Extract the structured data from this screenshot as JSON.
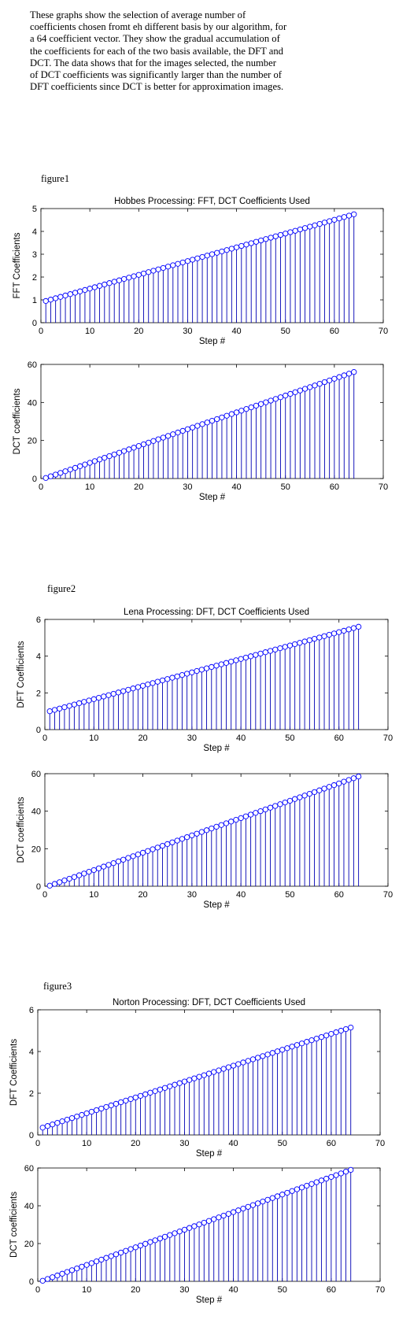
{
  "intro": {
    "lines": [
      "These graphs show the selection of average number of",
      "coefficients chosen fromt eh different basis by our algorithm, for",
      "a 64 coefficient vector. They show the gradual accumulation of",
      "the coefficients for each of the two basis available, the DFT and",
      "DCT. The data shows that for the images selected, the number",
      "of DCT coefficients was significantly larger than the number of",
      "DFT coefficients since DCT is better for approximation images."
    ]
  },
  "figures": [
    {
      "label": "figure1",
      "title": "Hobbes Processing: FFT, DCT Coefficients Used"
    },
    {
      "label": "figure2",
      "title": "Lena Processing: DFT, DCT Coefficients Used"
    },
    {
      "label": "figure3",
      "title": "Norton Processing: DFT, DCT Coefficients Used"
    }
  ],
  "colors": {
    "stem": "#0000b4",
    "marker": "#0000ff",
    "axis": "#000000"
  },
  "chart_data": [
    {
      "type": "scatter",
      "style": "stem",
      "figure": "figure1",
      "title": "Hobbes Processing: FFT, DCT Coefficients Used",
      "xlabel": "Step #",
      "ylabel": "FFT Coefficients",
      "xlim": [
        0,
        70
      ],
      "ylim": [
        0,
        5
      ],
      "xticks": [
        0,
        10,
        20,
        30,
        40,
        50,
        60,
        70
      ],
      "yticks": [
        0,
        1,
        2,
        3,
        4,
        5
      ],
      "x_range": [
        1,
        64
      ],
      "y_start": 0.95,
      "y_end": 4.75
    },
    {
      "type": "scatter",
      "style": "stem",
      "figure": "figure1",
      "title": "",
      "xlabel": "Step #",
      "ylabel": "DCT coefficients",
      "xlim": [
        0,
        70
      ],
      "ylim": [
        0,
        60
      ],
      "xticks": [
        0,
        10,
        20,
        30,
        40,
        50,
        60,
        70
      ],
      "yticks": [
        0,
        20,
        40,
        60
      ],
      "x_range": [
        1,
        64
      ],
      "y_start": 0.3,
      "y_end": 56
    },
    {
      "type": "scatter",
      "style": "stem",
      "figure": "figure2",
      "title": "Lena Processing: DFT, DCT Coefficients Used",
      "xlabel": "Step #",
      "ylabel": "DFT Coefficients",
      "xlim": [
        0,
        70
      ],
      "ylim": [
        0,
        6
      ],
      "xticks": [
        0,
        10,
        20,
        30,
        40,
        50,
        60,
        70
      ],
      "yticks": [
        0,
        2,
        4,
        6
      ],
      "x_range": [
        1,
        64
      ],
      "y_start": 1.0,
      "y_end": 5.6
    },
    {
      "type": "scatter",
      "style": "stem",
      "figure": "figure2",
      "title": "",
      "xlabel": "Step #",
      "ylabel": "DCT coefficients",
      "xlim": [
        0,
        70
      ],
      "ylim": [
        0,
        60
      ],
      "xticks": [
        0,
        10,
        20,
        30,
        40,
        50,
        60,
        70
      ],
      "yticks": [
        0,
        20,
        40,
        60
      ],
      "x_range": [
        1,
        64
      ],
      "y_start": 0.3,
      "y_end": 58.5
    },
    {
      "type": "scatter",
      "style": "stem",
      "figure": "figure3",
      "title": "Norton Processing: DFT, DCT Coefficients Used",
      "xlabel": "Step #",
      "ylabel": "DFT Coefficients",
      "xlim": [
        0,
        70
      ],
      "ylim": [
        0,
        6
      ],
      "xticks": [
        0,
        10,
        20,
        30,
        40,
        50,
        60,
        70
      ],
      "yticks": [
        0,
        2,
        4,
        6
      ],
      "x_range": [
        1,
        64
      ],
      "y_start": 0.35,
      "y_end": 5.15
    },
    {
      "type": "scatter",
      "style": "stem",
      "figure": "figure3",
      "title": "",
      "xlabel": "Step #",
      "ylabel": "DCT coefficients",
      "xlim": [
        0,
        70
      ],
      "ylim": [
        0,
        60
      ],
      "xticks": [
        0,
        10,
        20,
        30,
        40,
        50,
        60,
        70
      ],
      "yticks": [
        0,
        20,
        40,
        60
      ],
      "x_range": [
        1,
        64
      ],
      "y_start": 0.3,
      "y_end": 59
    }
  ]
}
